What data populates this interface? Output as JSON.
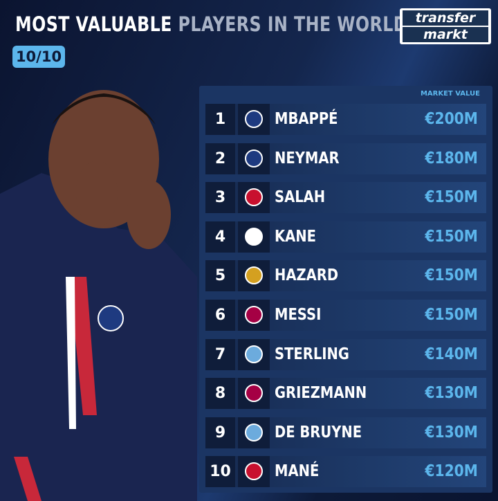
{
  "header": {
    "title_part1": "MOST VALUABLE",
    "title_part2": "PLAYERS IN THE WORLD",
    "badge": "10/10",
    "logo_top": "transfer",
    "logo_bottom": "markt"
  },
  "table": {
    "column_header": "MARKET VALUE",
    "rows": [
      {
        "rank": 1,
        "player": "MBAPPÉ",
        "market_value": "€200M"
      },
      {
        "rank": 2,
        "player": "NEYMAR",
        "market_value": "€180M"
      },
      {
        "rank": 3,
        "player": "SALAH",
        "market_value": "€150M"
      },
      {
        "rank": 4,
        "player": "KANE",
        "market_value": "€150M"
      },
      {
        "rank": 5,
        "player": "HAZARD",
        "market_value": "€150M"
      },
      {
        "rank": 6,
        "player": "MESSI",
        "market_value": "€150M"
      },
      {
        "rank": 7,
        "player": "STERLING",
        "market_value": "€140M"
      },
      {
        "rank": 8,
        "player": "GRIEZMANN",
        "market_value": "€130M"
      },
      {
        "rank": 9,
        "player": "DE BRUYNE",
        "market_value": "€130M"
      },
      {
        "rank": 10,
        "player": "MANÉ",
        "market_value": "€120M"
      }
    ]
  }
}
